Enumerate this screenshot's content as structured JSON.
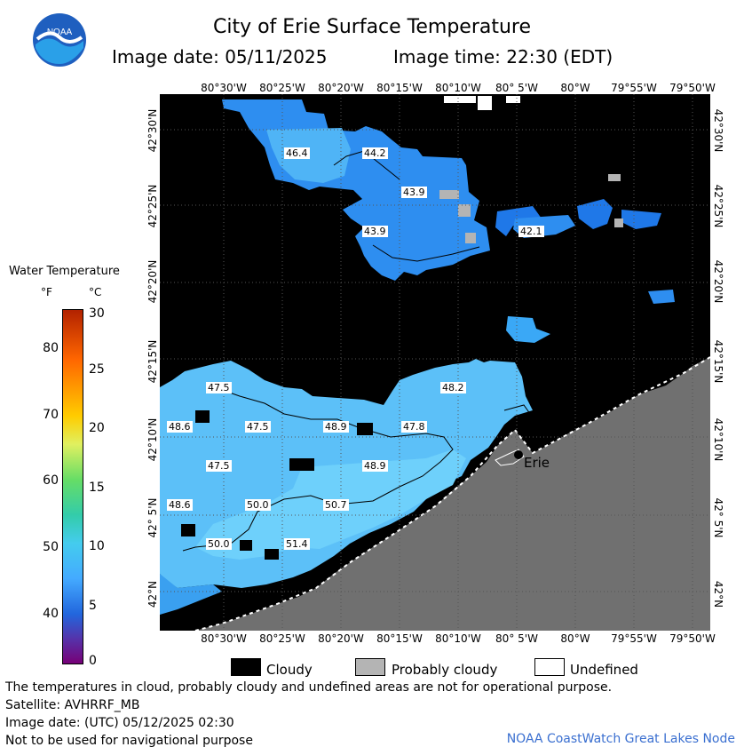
{
  "header": {
    "title": "City of Erie Surface Temperature",
    "image_date": "Image date: 05/11/2025",
    "image_time": "Image time: 22:30 (EDT)"
  },
  "logo": {
    "text": "NOAA"
  },
  "axes": {
    "lon_labels": [
      "80°30'W",
      "80°25'W",
      "80°20'W",
      "80°15'W",
      "80°10'W",
      "80° 5'W",
      "80°W",
      "79°55'W",
      "79°50'W"
    ],
    "lat_labels": [
      "42°30'N",
      "42°25'N",
      "42°20'N",
      "42°15'N",
      "42°10'N",
      "42° 5'N",
      "42°N"
    ]
  },
  "legend": {
    "title": "Water Temperature",
    "unit_f": "°F",
    "unit_c": "°C",
    "f_ticks": [
      "80",
      "70",
      "60",
      "50",
      "40"
    ],
    "c_ticks": [
      "30",
      "25",
      "20",
      "15",
      "10",
      "5",
      "0"
    ],
    "scale_colors": [
      "#b22200",
      "#ff6600",
      "#ffcc00",
      "#e0f060",
      "#66dd66",
      "#33ccaa",
      "#44ccee",
      "#44aaff",
      "#2266dd",
      "#5533aa",
      "#770077"
    ]
  },
  "map": {
    "colors": {
      "land": "#707070",
      "cloud": "#000000",
      "probably_cloudy": "#b4b4b4",
      "water_light": "#5cc0f8",
      "water_mid": "#3aa0f0",
      "water_dark": "#1f78e8"
    },
    "temperature_labels": [
      {
        "text": "46.4"
      },
      {
        "text": "44.2"
      },
      {
        "text": "43.9"
      },
      {
        "text": "43.9"
      },
      {
        "text": "42.1"
      },
      {
        "text": "47.5"
      },
      {
        "text": "48.2"
      },
      {
        "text": "48.6"
      },
      {
        "text": "47.5"
      },
      {
        "text": "48.9"
      },
      {
        "text": "47.8"
      },
      {
        "text": "47.5"
      },
      {
        "text": "48.9"
      },
      {
        "text": "48.6"
      },
      {
        "text": "50.0"
      },
      {
        "text": "50.7"
      },
      {
        "text": "50.0"
      },
      {
        "text": "51.4"
      }
    ],
    "city": "Erie"
  },
  "map_legend": {
    "cloudy": "Cloudy",
    "probably_cloudy": "Probably cloudy",
    "undefined": "Undefined"
  },
  "footer": {
    "disclaimer": "The temperatures in cloud, probably cloudy and undefined areas are not for operational purpose.",
    "satellite": "Satellite: AVHRRF_MB",
    "image_date_utc": "Image date: (UTC) 05/12/2025   02:30",
    "navigation": "Not to be used for navigational purpose",
    "credit": "NOAA CoastWatch Great Lakes Node"
  }
}
